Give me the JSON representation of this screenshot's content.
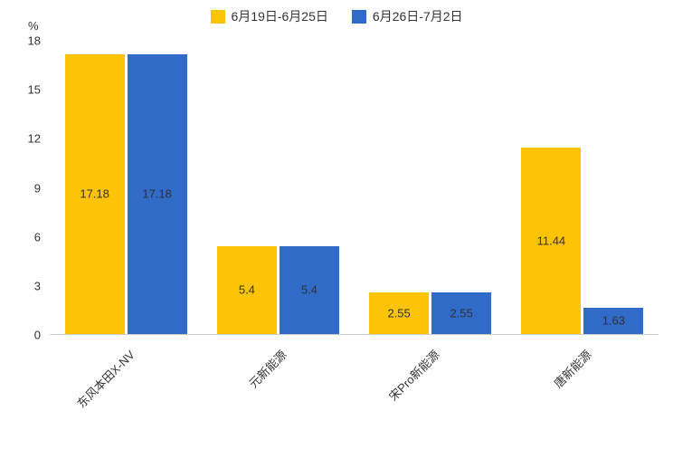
{
  "chart_data": {
    "type": "bar",
    "title": "",
    "categories": [
      "东风本田X-NV",
      "元新能源",
      "宋Pro新能源",
      "唐新能源"
    ],
    "series": [
      {
        "name": "6月19日-6月25日",
        "color": "#FCC307",
        "values": [
          17.18,
          5.4,
          2.55,
          11.44
        ]
      },
      {
        "name": "6月26日-7月2日",
        "color": "#2F6BC7",
        "values": [
          17.18,
          5.4,
          2.55,
          1.63
        ]
      }
    ],
    "xlabel": "",
    "ylabel": "%",
    "ylim": [
      0,
      18
    ],
    "yticks": [
      0,
      3,
      6,
      9,
      12,
      15,
      18
    ],
    "grid": false,
    "legend_position": "top",
    "bar_label_position": "inside",
    "colors": {
      "text": "#333333",
      "axis_line": "#cccccc",
      "background": "#ffffff"
    }
  }
}
